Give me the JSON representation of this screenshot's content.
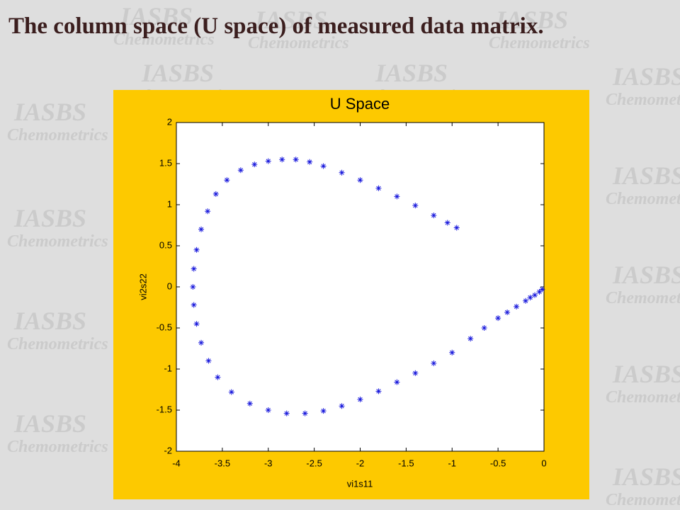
{
  "slide_title": "The column space (U space) of measured data matrix.",
  "watermark": [
    "IASBS",
    "Chemometrics"
  ],
  "chart_data": {
    "type": "scatter",
    "title": "U Space",
    "x_label": "vi1s11",
    "y_label": "vi2s22",
    "marker": "*",
    "color": "#1a1adc",
    "xlim": [
      -4,
      0
    ],
    "ylim": [
      -2,
      2
    ],
    "xticks": [
      -4,
      -3.5,
      -3,
      -2.5,
      -2,
      -1.5,
      -1,
      -0.5,
      0
    ],
    "yticks": [
      -2,
      -1.5,
      -1,
      -0.5,
      0,
      0.5,
      1,
      1.5,
      2
    ],
    "x": [
      -0.02,
      -0.05,
      -0.1,
      -0.15,
      -0.2,
      -0.3,
      -0.4,
      -0.5,
      -0.65,
      -0.8,
      -1,
      -1.2,
      -1.4,
      -1.6,
      -1.8,
      -2,
      -2.2,
      -2.4,
      -2.6,
      -2.8,
      -3,
      -3.2,
      -3.4,
      -3.55,
      -3.65,
      -3.73,
      -3.78,
      -3.81,
      -3.82,
      -3.81,
      -3.78,
      -3.73,
      -3.66,
      -3.57,
      -3.45,
      -3.3,
      -3.15,
      -3,
      -2.85,
      -2.7,
      -2.55,
      -2.4,
      -2.2,
      -2,
      -1.8,
      -1.6,
      -1.4,
      -1.2,
      -1.05,
      -0.95
    ],
    "y": [
      -0.03,
      -0.06,
      -0.1,
      -0.13,
      -0.17,
      -0.24,
      -0.31,
      -0.38,
      -0.5,
      -0.63,
      -0.8,
      -0.93,
      -1.05,
      -1.16,
      -1.27,
      -1.37,
      -1.45,
      -1.51,
      -1.54,
      -1.54,
      -1.5,
      -1.42,
      -1.28,
      -1.1,
      -0.9,
      -0.68,
      -0.45,
      -0.22,
      0,
      0.22,
      0.45,
      0.7,
      0.92,
      1.13,
      1.3,
      1.42,
      1.49,
      1.53,
      1.55,
      1.55,
      1.52,
      1.47,
      1.39,
      1.3,
      1.2,
      1.1,
      0.99,
      0.87,
      0.78,
      0.72
    ]
  }
}
